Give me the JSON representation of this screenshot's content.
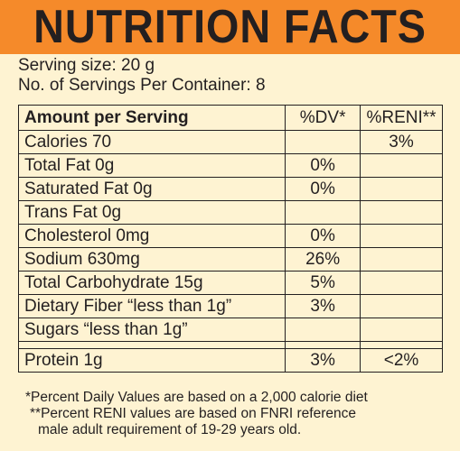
{
  "header": {
    "title": "NUTRITION FACTS"
  },
  "serving": {
    "size": "Serving size: 20 g",
    "per_container": "No. of Servings Per Container: 8"
  },
  "table": {
    "headers": [
      "Amount per Serving",
      "%DV*",
      "%RENI**"
    ],
    "rows": [
      {
        "label": "Calories 70",
        "dv": "",
        "reni": "3%"
      },
      {
        "label": "Total Fat 0g",
        "dv": "0%",
        "reni": ""
      },
      {
        "label": "Saturated Fat 0g",
        "dv": "0%",
        "reni": ""
      },
      {
        "label": "Trans Fat 0g",
        "dv": "",
        "reni": ""
      },
      {
        "label": "Cholesterol 0mg",
        "dv": "0%",
        "reni": ""
      },
      {
        "label": "Sodium 630mg",
        "dv": "26%",
        "reni": ""
      },
      {
        "label": "Total Carbohydrate 15g",
        "dv": "5%",
        "reni": ""
      },
      {
        "label": "Dietary Fiber “less than 1g”",
        "dv": "3%",
        "reni": ""
      },
      {
        "label": "Sugars  “less than 1g”",
        "dv": "",
        "reni": ""
      },
      {
        "label": "Protein 1g",
        "dv": "3%",
        "reni": "<2%"
      }
    ]
  },
  "footnotes": {
    "dv_note": "*Percent Daily Values are based on a 2,000 calorie diet",
    "reni_note_line1": "**Percent RENI values are based on FNRI reference",
    "reni_note_line2": "male adult requirement of 19-29 years old."
  },
  "colors": {
    "header_bg": "#f58a2a",
    "panel_bg": "#fef3d2",
    "text": "#231f20"
  }
}
